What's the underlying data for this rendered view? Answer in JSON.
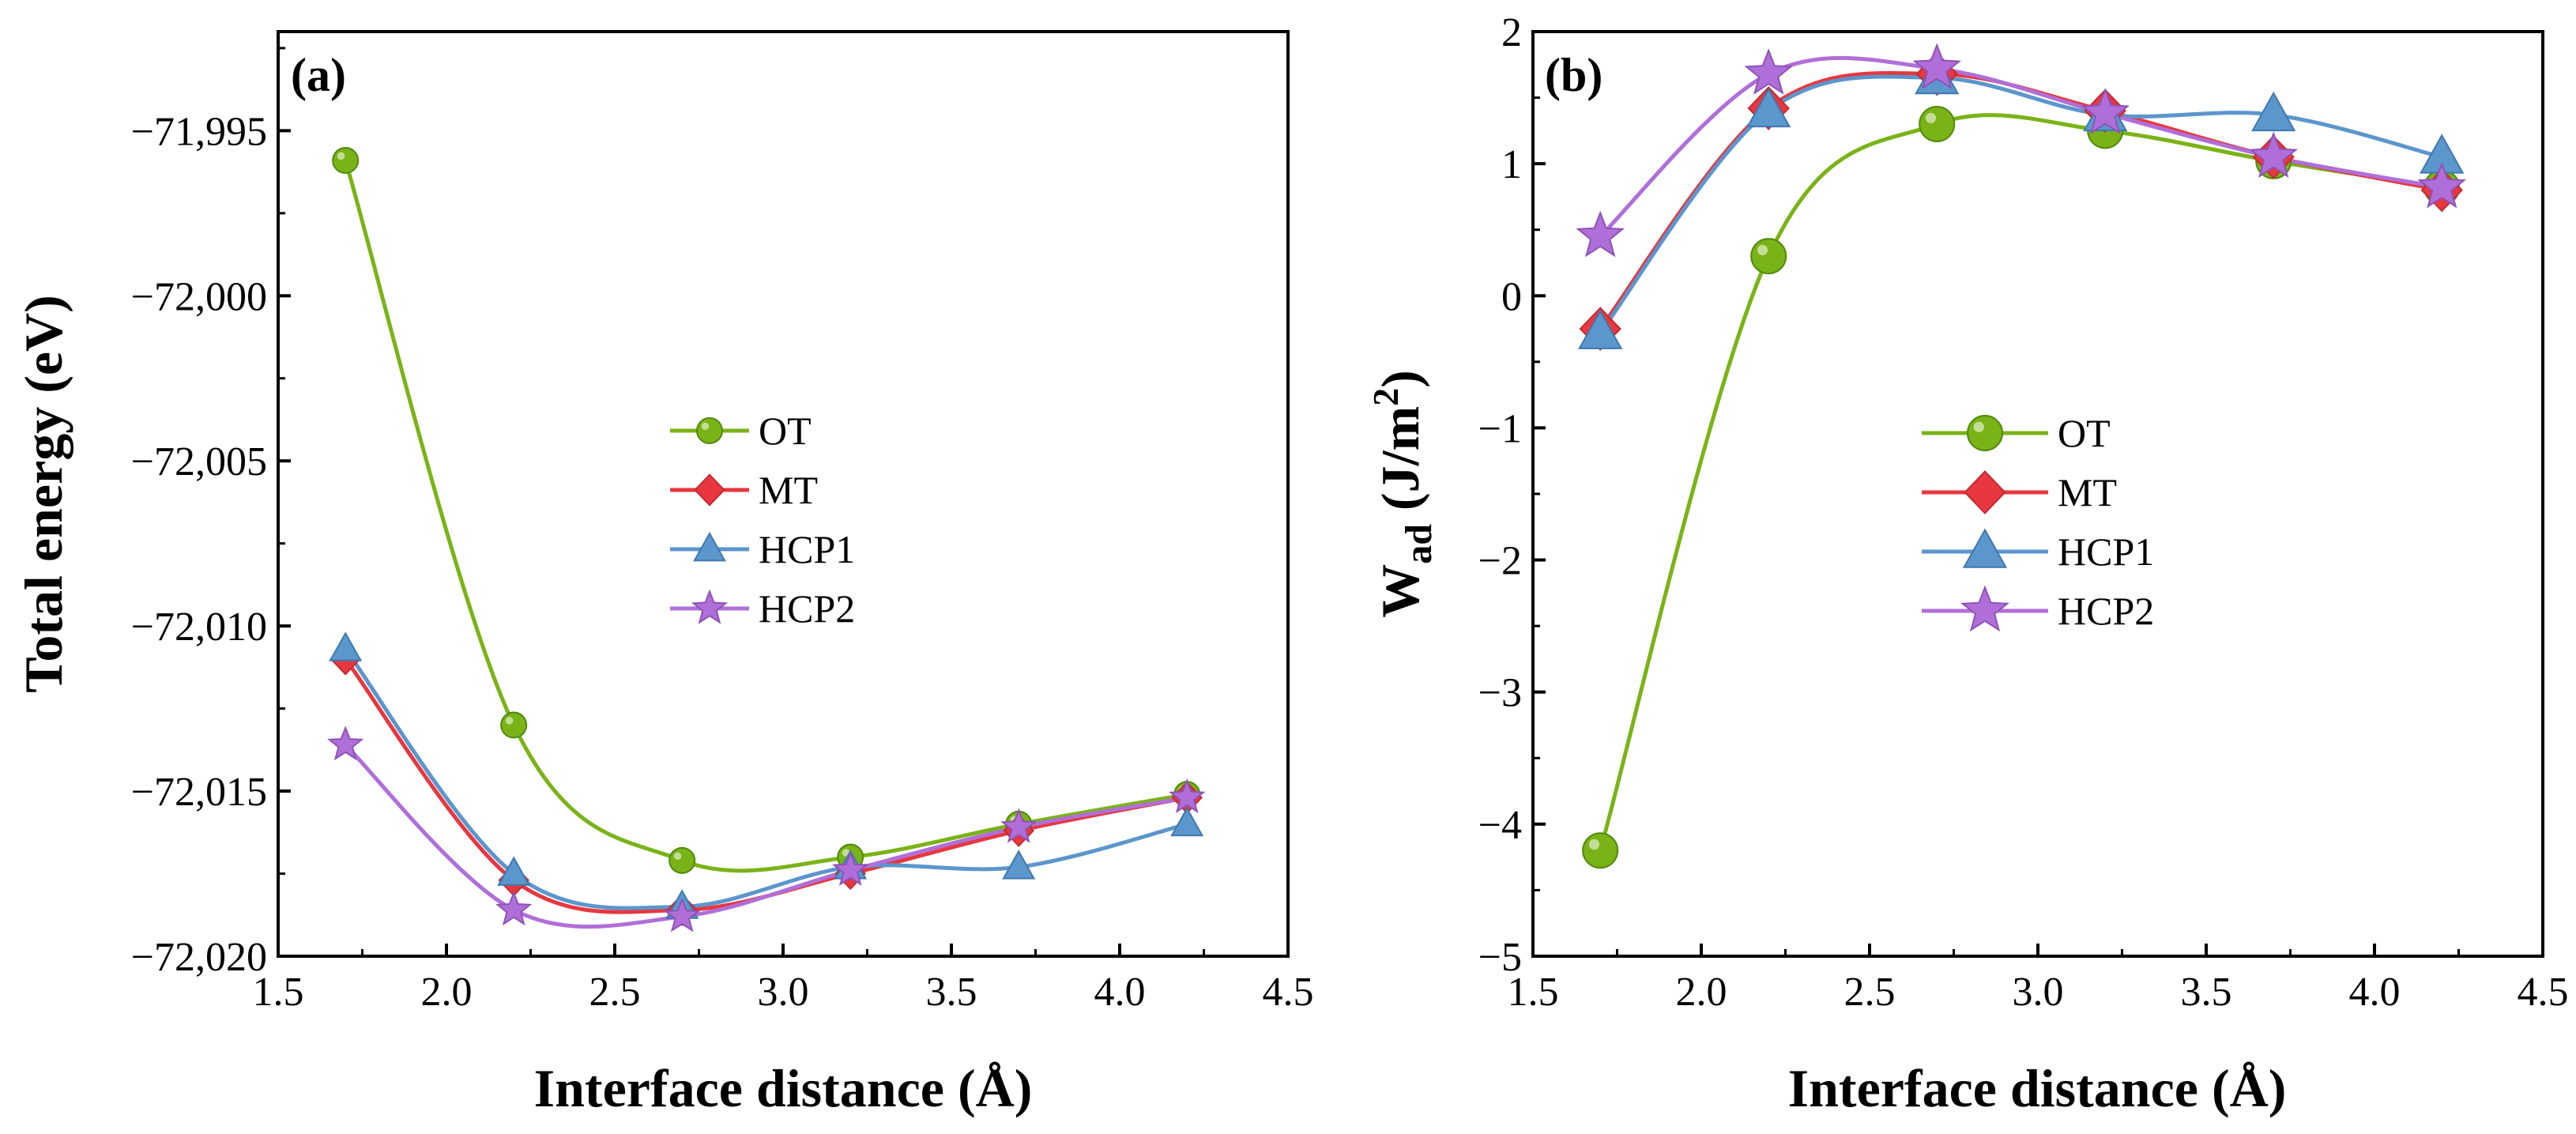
{
  "chart_data": [
    {
      "type": "line",
      "panel_label": "(a)",
      "xlabel": "Interface distance (Å)",
      "ylabel": "Total energy (eV)",
      "xlim": [
        1.5,
        4.5
      ],
      "ylim": [
        -72020,
        -71992
      ],
      "xticks": [
        "1.5",
        "2.0",
        "2.5",
        "3.0",
        "3.5",
        "4.0",
        "4.5"
      ],
      "yticks": [
        "−72,020",
        "−72,015",
        "−72,010",
        "−72,005",
        "−72,000",
        "−71,995"
      ],
      "x": [
        1.7,
        2.2,
        2.7,
        3.2,
        3.7,
        4.2
      ],
      "legend_position": "center-right",
      "series": [
        {
          "name": "OT",
          "color": "#7ab317",
          "marker": "circle",
          "values": [
            -71995.9,
            -72013.0,
            -72017.1,
            -72017.0,
            -72016.0,
            -72015.1
          ]
        },
        {
          "name": "MT",
          "color": "#e8373f",
          "marker": "diamond",
          "values": [
            -72011.0,
            -72017.7,
            -72018.6,
            -72017.5,
            -72016.2,
            -72015.2
          ]
        },
        {
          "name": "HCP1",
          "color": "#5b96cc",
          "marker": "triangle",
          "values": [
            -72010.7,
            -72017.5,
            -72018.5,
            -72017.3,
            -72017.3,
            -72016.0
          ]
        },
        {
          "name": "HCP2",
          "color": "#b06fd8",
          "marker": "star",
          "values": [
            -72013.6,
            -72018.6,
            -72018.8,
            -72017.4,
            -72016.1,
            -72015.2
          ]
        }
      ]
    },
    {
      "type": "line",
      "panel_label": "(b)",
      "xlabel": "Interface distance (Å)",
      "ylabel": "W",
      "ylabel_sub": "ad",
      "ylabel_unit": " (J/m",
      "ylabel_sup": "2",
      "ylabel_close": ")",
      "xlim": [
        1.5,
        4.5
      ],
      "ylim": [
        -5,
        2
      ],
      "xticks": [
        "1.5",
        "2.0",
        "2.5",
        "3.0",
        "3.5",
        "4.0",
        "4.5"
      ],
      "yticks": [
        "−5",
        "−4",
        "−3",
        "−2",
        "−1",
        "0",
        "1",
        "2"
      ],
      "x": [
        1.7,
        2.2,
        2.7,
        3.2,
        3.7,
        4.2
      ],
      "legend_position": "center-right",
      "series": [
        {
          "name": "OT",
          "color": "#7ab317",
          "marker": "circle",
          "values": [
            -4.2,
            0.3,
            1.3,
            1.25,
            1.02,
            0.82
          ]
        },
        {
          "name": "MT",
          "color": "#e8373f",
          "marker": "diamond",
          "values": [
            -0.25,
            1.42,
            1.68,
            1.4,
            1.05,
            0.8
          ]
        },
        {
          "name": "HCP1",
          "color": "#5b96cc",
          "marker": "triangle",
          "values": [
            -0.28,
            1.4,
            1.65,
            1.37,
            1.37,
            1.05
          ]
        },
        {
          "name": "HCP2",
          "color": "#b06fd8",
          "marker": "star",
          "values": [
            0.45,
            1.68,
            1.72,
            1.38,
            1.05,
            0.82
          ]
        }
      ]
    }
  ]
}
